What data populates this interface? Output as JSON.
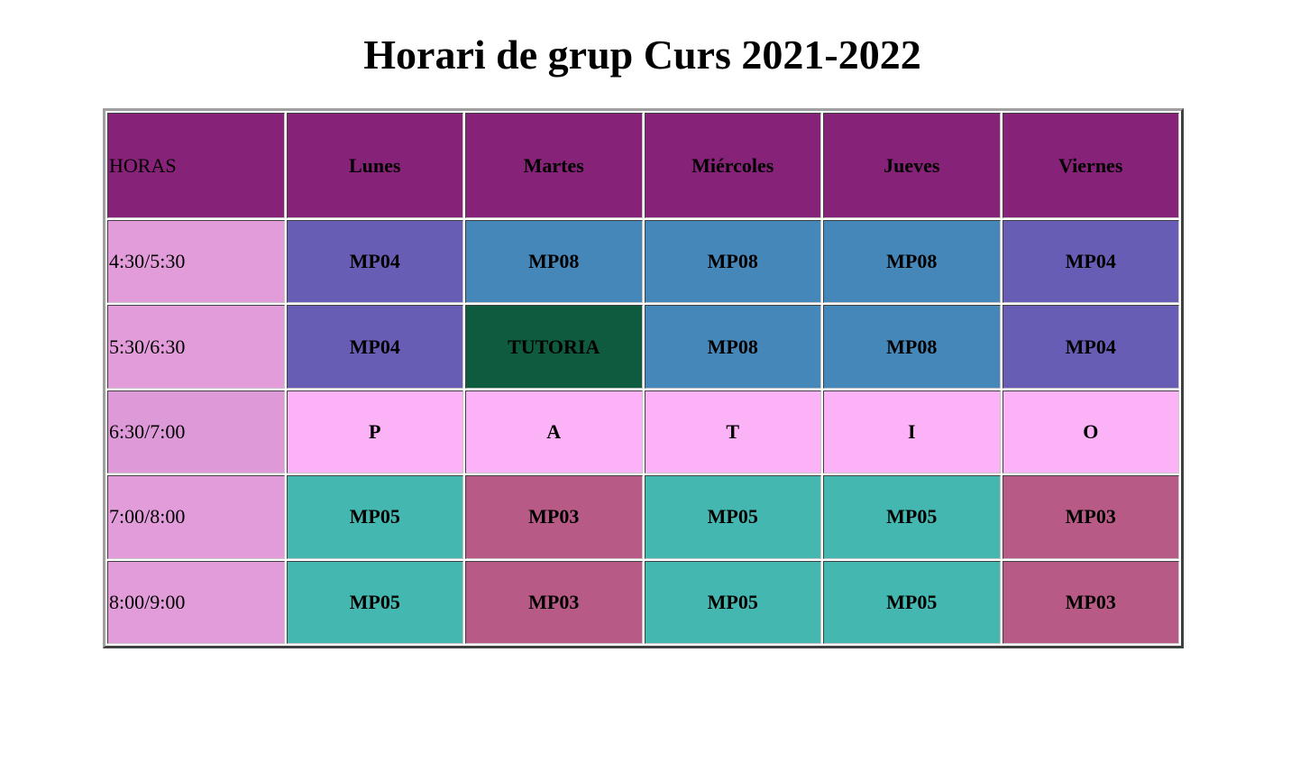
{
  "page": {
    "title": "Horari de grup Curs 2021-2022"
  },
  "colors": {
    "header": "#862277",
    "hour_cell": "#e29cda",
    "hour_cell_break": "#de9ad8",
    "MP04": "#675db5",
    "MP08": "#4687b9",
    "TUTORIA": "#0f5b3f",
    "PATIO": "#fbb2f7",
    "MP05": "#44b7b0",
    "MP03": "#b75b86"
  },
  "table": {
    "hours_header": "HORAS",
    "days": [
      "Lunes",
      "Martes",
      "Miércoles",
      "Jueves",
      "Viernes"
    ],
    "rows": [
      {
        "hour": "4:30/5:30",
        "slots": [
          {
            "text": "MP04",
            "type": "MP04"
          },
          {
            "text": "MP08",
            "type": "MP08"
          },
          {
            "text": "MP08",
            "type": "MP08"
          },
          {
            "text": "MP08",
            "type": "MP08"
          },
          {
            "text": "MP04",
            "type": "MP04"
          }
        ]
      },
      {
        "hour": "5:30/6:30",
        "slots": [
          {
            "text": "MP04",
            "type": "MP04"
          },
          {
            "text": "TUTORIA",
            "type": "TUTORIA"
          },
          {
            "text": "MP08",
            "type": "MP08"
          },
          {
            "text": "MP08",
            "type": "MP08"
          },
          {
            "text": "MP04",
            "type": "MP04"
          }
        ]
      },
      {
        "hour": "6:30/7:00",
        "is_break": true,
        "slots": [
          {
            "text": "P",
            "type": "PATIO"
          },
          {
            "text": "A",
            "type": "PATIO"
          },
          {
            "text": "T",
            "type": "PATIO"
          },
          {
            "text": "I",
            "type": "PATIO"
          },
          {
            "text": "O",
            "type": "PATIO"
          }
        ]
      },
      {
        "hour": "7:00/8:00",
        "slots": [
          {
            "text": "MP05",
            "type": "MP05"
          },
          {
            "text": "MP03",
            "type": "MP03"
          },
          {
            "text": "MP05",
            "type": "MP05"
          },
          {
            "text": "MP05",
            "type": "MP05"
          },
          {
            "text": "MP03",
            "type": "MP03"
          }
        ]
      },
      {
        "hour": "8:00/9:00",
        "slots": [
          {
            "text": "MP05",
            "type": "MP05"
          },
          {
            "text": "MP03",
            "type": "MP03"
          },
          {
            "text": "MP05",
            "type": "MP05"
          },
          {
            "text": "MP05",
            "type": "MP05"
          },
          {
            "text": "MP03",
            "type": "MP03"
          }
        ]
      }
    ]
  }
}
